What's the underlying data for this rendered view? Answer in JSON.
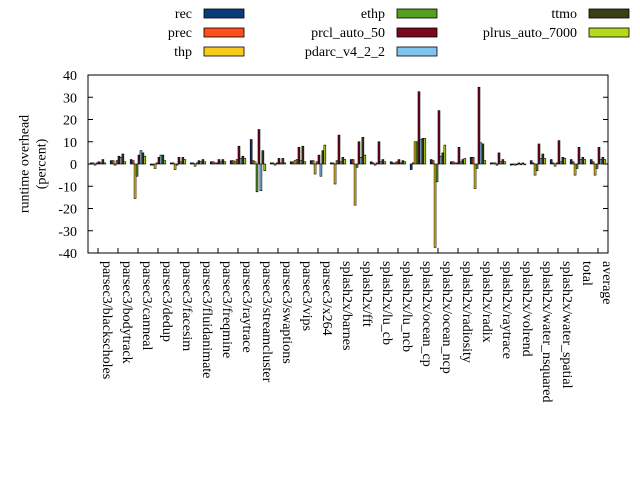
{
  "chart_data": {
    "type": "bar",
    "ylabel": "runtime overhead\n(percent)",
    "xlabel": "",
    "ylim": [
      -40,
      40
    ],
    "yticks": [
      -40,
      -30,
      -20,
      -10,
      0,
      10,
      20,
      30,
      40
    ],
    "legend_position": "top",
    "categories": [
      "parsec3/blackscholes",
      "parsec3/bodytrack",
      "parsec3/canneal",
      "parsec3/dedup",
      "parsec3/facesim",
      "parsec3/fluidanimate",
      "parsec3/freqmine",
      "parsec3/raytrace",
      "parsec3/streamcluster",
      "parsec3/swaptions",
      "parsec3/vips",
      "parsec3/x264",
      "splash2x/barnes",
      "splash2x/fft",
      "splash2x/lu_cb",
      "splash2x/lu_ncb",
      "splash2x/ocean_cp",
      "splash2x/ocean_ncp",
      "splash2x/radiosity",
      "splash2x/radix",
      "splash2x/raytrace",
      "splash2x/volrend",
      "splash2x/water_nsquared",
      "splash2x/water_spatial",
      "total",
      "average"
    ],
    "series": [
      {
        "name": "rec",
        "color": "#0b3c7a",
        "values": [
          0.5,
          1.5,
          2.0,
          -0.5,
          0.5,
          0.5,
          1.0,
          1.5,
          11.0,
          0.5,
          1.0,
          1.5,
          0.5,
          2.0,
          1.0,
          1.0,
          -2.5,
          2.0,
          1.0,
          3.0,
          0.5,
          -0.5,
          1.5,
          2.0,
          2.0,
          2.0
        ]
      },
      {
        "name": "prec",
        "color": "#ff4f1f",
        "values": [
          0.5,
          1.5,
          1.5,
          -0.5,
          0.5,
          0.5,
          1.0,
          1.5,
          1.5,
          0.5,
          1.0,
          1.5,
          0.5,
          2.0,
          0.5,
          0.5,
          0.5,
          1.5,
          1.0,
          3.0,
          0.5,
          0.0,
          0.5,
          0.5,
          1.0,
          1.0
        ]
      },
      {
        "name": "thp",
        "color": "#f7cb1b",
        "values": [
          -0.5,
          -0.5,
          -15.5,
          -2.0,
          -2.5,
          -1.0,
          0.5,
          1.0,
          1.0,
          -0.5,
          1.5,
          -4.5,
          -9.0,
          -18.5,
          -0.5,
          0.5,
          10.0,
          -37.5,
          0.5,
          -11.0,
          0.5,
          -0.5,
          -5.0,
          -1.0,
          -5.0,
          -5.0
        ]
      },
      {
        "name": "ethp",
        "color": "#55a11f",
        "values": [
          0.5,
          1.5,
          -5.5,
          0.5,
          -0.5,
          0.5,
          0.5,
          2.0,
          -12.5,
          0.5,
          2.0,
          1.0,
          1.5,
          -1.5,
          0.5,
          1.0,
          10.0,
          -8.0,
          0.5,
          -2.0,
          -0.5,
          0.0,
          -3.0,
          0.5,
          -2.0,
          -2.0
        ]
      },
      {
        "name": "prcl_auto_50",
        "color": "#7a0820",
        "values": [
          1.0,
          3.5,
          4.0,
          3.0,
          3.0,
          1.5,
          2.0,
          8.0,
          15.5,
          2.5,
          7.5,
          4.0,
          13.0,
          10.0,
          10.0,
          2.0,
          32.5,
          24.0,
          7.5,
          34.5,
          5.0,
          0.5,
          9.0,
          10.5,
          7.5,
          7.5
        ]
      },
      {
        "name": "pdarc_v4_2_2",
        "color": "#7fc3f1",
        "values": [
          0.5,
          3.0,
          6.0,
          4.0,
          1.0,
          1.0,
          1.0,
          2.5,
          -12.0,
          0.5,
          1.5,
          -5.5,
          1.0,
          3.0,
          1.0,
          0.5,
          11.0,
          3.5,
          1.0,
          9.5,
          1.0,
          0.0,
          2.5,
          1.0,
          2.0,
          2.0
        ]
      },
      {
        "name": "ttmo",
        "color": "#3b3f16",
        "values": [
          2.0,
          4.5,
          5.0,
          4.0,
          3.0,
          2.0,
          2.0,
          3.5,
          6.0,
          2.5,
          8.0,
          6.0,
          3.0,
          12.0,
          2.0,
          1.5,
          11.5,
          5.0,
          2.0,
          9.0,
          2.0,
          0.5,
          4.5,
          3.0,
          3.0,
          3.0
        ]
      },
      {
        "name": "plrus_auto_7000",
        "color": "#b5d91c",
        "values": [
          0.5,
          1.0,
          3.5,
          1.5,
          2.0,
          1.0,
          1.0,
          2.5,
          -3.0,
          0.5,
          1.0,
          8.5,
          2.0,
          4.0,
          1.0,
          1.0,
          11.5,
          8.5,
          2.5,
          1.5,
          1.0,
          0.0,
          2.5,
          2.5,
          2.0,
          2.0
        ]
      }
    ]
  }
}
